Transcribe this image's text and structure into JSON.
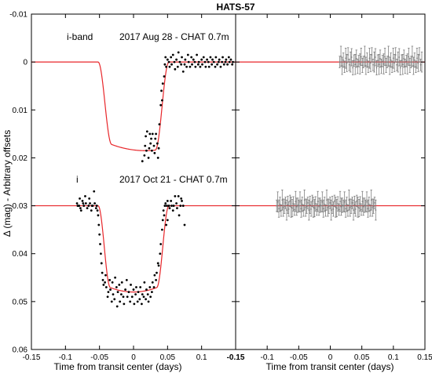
{
  "chart_data": {
    "type": "scatter",
    "title": "HATS-57",
    "ylabel": "Δ (mag) - Arbitrary offsets",
    "ylim": [
      0.06,
      -0.01
    ],
    "y_ticks": [
      "-0.01",
      "0",
      "0.01",
      "0.02",
      "0.03",
      "0.04",
      "0.05",
      "0.06"
    ],
    "y_tick_values": [
      -0.01,
      0,
      0.01,
      0.02,
      0.03,
      0.04,
      0.05,
      0.06
    ],
    "colors": {
      "model": "#e8262a",
      "points": "#000000",
      "residuals": "#7f7f7f"
    },
    "panels": [
      {
        "id": "light-curves",
        "xlabel": "Time from transit center (days)",
        "xlim": [
          -0.15,
          0.15
        ],
        "x_ticks": [
          "-0.15",
          "-0.1",
          "-0.05",
          "0",
          "0.05",
          "0.1"
        ],
        "x_tick_values": [
          -0.15,
          -0.1,
          -0.05,
          0,
          0.05,
          0.1
        ]
      },
      {
        "id": "residuals",
        "xlabel": "Time from transit center (days)",
        "xlim": [
          -0.15,
          0.15
        ],
        "x_ticks": [
          "-0.15",
          "-0.1",
          "-0.05",
          "0",
          "0.05",
          "0.1",
          "0.15"
        ],
        "x_tick_values": [
          -0.15,
          -0.1,
          -0.05,
          0,
          0.05,
          0.1,
          0.15
        ]
      }
    ],
    "series": [
      {
        "name": "i-band",
        "label_date": "2017 Aug 28 - CHAT 0.7m",
        "offset": 0,
        "model": {
          "baseline": 0,
          "depth": 0.0185,
          "t_min": 0.017,
          "ingress_start": -0.052,
          "ingress_end": -0.032,
          "egress_start": 0.032,
          "egress_end": 0.052,
          "x_range": [
            -0.15,
            0.15
          ]
        },
        "points": [
          [
            0.013,
            0.0207
          ],
          [
            0.016,
            0.0195
          ],
          [
            0.017,
            0.0175
          ],
          [
            0.018,
            0.0155
          ],
          [
            0.019,
            0.0185
          ],
          [
            0.02,
            0.0145
          ],
          [
            0.022,
            0.02
          ],
          [
            0.023,
            0.018
          ],
          [
            0.024,
            0.015
          ],
          [
            0.025,
            0.017
          ],
          [
            0.026,
            0.016
          ],
          [
            0.027,
            0.0185
          ],
          [
            0.028,
            0.015
          ],
          [
            0.03,
            0.0175
          ],
          [
            0.031,
            0.019
          ],
          [
            0.032,
            0.016
          ],
          [
            0.033,
            0.015
          ],
          [
            0.035,
            0.017
          ],
          [
            0.036,
            0.02
          ],
          [
            0.037,
            0.018
          ],
          [
            0.038,
            0.013
          ],
          [
            0.04,
            0.009
          ],
          [
            0.041,
            0.006
          ],
          [
            0.042,
            0.008
          ],
          [
            0.043,
            0.0045
          ],
          [
            0.045,
            0.003
          ],
          [
            0.046,
            0.0005
          ],
          [
            0.047,
            -0.001
          ],
          [
            0.048,
            0.001
          ],
          [
            0.05,
            -0.0005
          ],
          [
            0.052,
            0.0
          ],
          [
            0.053,
            0.001
          ],
          [
            0.055,
            -0.001
          ],
          [
            0.056,
            0.0005
          ],
          [
            0.058,
            -0.0015
          ],
          [
            0.06,
            0.0
          ],
          [
            0.061,
            0.0015
          ],
          [
            0.063,
            -0.0005
          ],
          [
            0.065,
            0.001
          ],
          [
            0.066,
            -0.002
          ],
          [
            0.068,
            0.0
          ],
          [
            0.07,
            0.0005
          ],
          [
            0.071,
            -0.001
          ],
          [
            0.073,
            0.002
          ],
          [
            0.075,
            0.0005
          ],
          [
            0.076,
            -0.0005
          ],
          [
            0.078,
            0.001
          ],
          [
            0.08,
            -0.0015
          ],
          [
            0.081,
            0.0
          ],
          [
            0.083,
            0.001
          ],
          [
            0.085,
            -0.001
          ],
          [
            0.086,
            0.0005
          ],
          [
            0.088,
            -0.0005
          ],
          [
            0.09,
            0.0
          ],
          [
            0.091,
            0.001
          ],
          [
            0.093,
            -0.0015
          ],
          [
            0.095,
            0.0005
          ],
          [
            0.096,
            0.0
          ],
          [
            0.098,
            0.001
          ],
          [
            0.1,
            -0.0005
          ],
          [
            0.101,
            0.0005
          ],
          [
            0.103,
            -0.001
          ],
          [
            0.105,
            0.0
          ],
          [
            0.106,
            0.001
          ],
          [
            0.108,
            -0.0005
          ],
          [
            0.11,
            0.0
          ],
          [
            0.111,
            0.001
          ],
          [
            0.113,
            -0.001
          ],
          [
            0.115,
            0.0005
          ],
          [
            0.116,
            -0.0005
          ],
          [
            0.118,
            0.0
          ],
          [
            0.12,
            0.001
          ],
          [
            0.121,
            -0.001
          ],
          [
            0.123,
            0.0005
          ],
          [
            0.125,
            0.0
          ],
          [
            0.126,
            -0.0005
          ],
          [
            0.128,
            0.001
          ],
          [
            0.13,
            0.0
          ],
          [
            0.131,
            -0.001
          ],
          [
            0.133,
            0.0005
          ],
          [
            0.135,
            0.0
          ],
          [
            0.136,
            -0.0005
          ],
          [
            0.138,
            0.0005
          ],
          [
            0.14,
            -0.001
          ],
          [
            0.141,
            0.0
          ],
          [
            0.143,
            -0.0005
          ],
          [
            0.145,
            0.0005
          ],
          [
            0.146,
            0.0
          ]
        ],
        "residuals": {
          "x_start": 0.015,
          "x_end": 0.145,
          "count": 70,
          "values": [
            0.0,
            -0.0012,
            0.0008,
            -0.0004,
            0.001,
            -0.0008,
            0.0002,
            -0.0015,
            0.0006,
            0.0,
            -0.001,
            0.0012,
            -0.0003,
            0.0005,
            -0.0007,
            0.0009,
            -0.0002,
            0.0004,
            -0.0011,
            0.0007
          ]
        }
      },
      {
        "name": "i",
        "label_date": "2017 Oct 21 - CHAT 0.7m",
        "offset": 0.03,
        "model": {
          "baseline": 0.03,
          "depth": 0.018,
          "t_min": 0.0,
          "ingress_start": -0.052,
          "ingress_end": -0.034,
          "egress_start": 0.034,
          "egress_end": 0.052,
          "x_range": [
            -0.15,
            0.15
          ]
        },
        "points": [
          [
            -0.083,
            0.0295
          ],
          [
            -0.082,
            0.03
          ],
          [
            -0.08,
            0.03
          ],
          [
            -0.079,
            0.0285
          ],
          [
            -0.078,
            0.0305
          ],
          [
            -0.077,
            0.031
          ],
          [
            -0.075,
            0.029
          ],
          [
            -0.074,
            0.0295
          ],
          [
            -0.073,
            0.03
          ],
          [
            -0.071,
            0.028
          ],
          [
            -0.07,
            0.0295
          ],
          [
            -0.068,
            0.0305
          ],
          [
            -0.066,
            0.03
          ],
          [
            -0.065,
            0.0285
          ],
          [
            -0.064,
            0.0295
          ],
          [
            -0.062,
            0.031
          ],
          [
            -0.061,
            0.03
          ],
          [
            -0.06,
            0.03
          ],
          [
            -0.058,
            0.027
          ],
          [
            -0.057,
            0.0295
          ],
          [
            -0.055,
            0.0305
          ],
          [
            -0.054,
            0.03
          ],
          [
            -0.053,
            0.031
          ],
          [
            -0.052,
            0.032
          ],
          [
            -0.051,
            0.034
          ],
          [
            -0.05,
            0.036
          ],
          [
            -0.049,
            0.038
          ],
          [
            -0.048,
            0.04
          ],
          [
            -0.047,
            0.042
          ],
          [
            -0.046,
            0.044
          ],
          [
            -0.045,
            0.0455
          ],
          [
            -0.044,
            0.0465
          ],
          [
            -0.042,
            0.046
          ],
          [
            -0.041,
            0.0445
          ],
          [
            -0.04,
            0.047
          ],
          [
            -0.038,
            0.049
          ],
          [
            -0.037,
            0.048
          ],
          [
            -0.035,
            0.0455
          ],
          [
            -0.034,
            0.0475
          ],
          [
            -0.032,
            0.05
          ],
          [
            -0.031,
            0.046
          ],
          [
            -0.03,
            0.0485
          ],
          [
            -0.028,
            0.0495
          ],
          [
            -0.027,
            0.045
          ],
          [
            -0.025,
            0.047
          ],
          [
            -0.024,
            0.051
          ],
          [
            -0.023,
            0.048
          ],
          [
            -0.021,
            0.0465
          ],
          [
            -0.02,
            0.05
          ],
          [
            -0.018,
            0.0485
          ],
          [
            -0.017,
            0.046
          ],
          [
            -0.015,
            0.049
          ],
          [
            -0.014,
            0.0505
          ],
          [
            -0.012,
            0.0475
          ],
          [
            -0.01,
            0.0455
          ],
          [
            -0.009,
            0.049
          ],
          [
            -0.007,
            0.048
          ],
          [
            -0.005,
            0.05
          ],
          [
            -0.004,
            0.0465
          ],
          [
            -0.002,
            0.049
          ],
          [
            0.0,
            0.0475
          ],
          [
            0.001,
            0.0505
          ],
          [
            0.003,
            0.0485
          ],
          [
            0.004,
            0.047
          ],
          [
            0.006,
            0.05
          ],
          [
            0.007,
            0.048
          ],
          [
            0.009,
            0.0495
          ],
          [
            0.01,
            0.047
          ],
          [
            0.012,
            0.0505
          ],
          [
            0.013,
            0.0485
          ],
          [
            0.015,
            0.049
          ],
          [
            0.016,
            0.046
          ],
          [
            0.018,
            0.0495
          ],
          [
            0.019,
            0.0475
          ],
          [
            0.021,
            0.0485
          ],
          [
            0.022,
            0.05
          ],
          [
            0.024,
            0.047
          ],
          [
            0.025,
            0.049
          ],
          [
            0.027,
            0.048
          ],
          [
            0.028,
            0.046
          ],
          [
            0.03,
            0.047
          ],
          [
            0.031,
            0.0445
          ],
          [
            0.033,
            0.0455
          ],
          [
            0.034,
            0.044
          ],
          [
            0.036,
            0.042
          ],
          [
            0.037,
            0.0425
          ],
          [
            0.039,
            0.04
          ],
          [
            0.04,
            0.038
          ],
          [
            0.042,
            0.035
          ],
          [
            0.043,
            0.033
          ],
          [
            0.044,
            0.031
          ],
          [
            0.046,
            0.03
          ],
          [
            0.047,
            0.0295
          ],
          [
            0.049,
            0.03
          ],
          [
            0.05,
            0.029
          ],
          [
            0.052,
            0.03
          ],
          [
            0.053,
            0.0305
          ],
          [
            0.055,
            0.029
          ],
          [
            0.056,
            0.03
          ],
          [
            0.058,
            0.031
          ],
          [
            0.059,
            0.03
          ],
          [
            0.061,
            0.028
          ],
          [
            0.063,
            0.0295
          ],
          [
            0.064,
            0.0305
          ],
          [
            0.066,
            0.028
          ],
          [
            0.067,
            0.032
          ],
          [
            0.069,
            0.03
          ],
          [
            0.07,
            0.0285
          ],
          [
            0.071,
            0.029
          ],
          [
            0.073,
            0.03
          ],
          [
            0.075,
            0.034
          ],
          [
            0.05,
            0.033
          ],
          [
            0.045,
            0.032
          ],
          [
            0.048,
            0.034
          ]
        ],
        "residuals": {
          "x_start": -0.085,
          "x_end": 0.072,
          "count": 90,
          "values": [
            0.0,
            -0.0008,
            0.0006,
            -0.0003,
            0.001,
            -0.0012,
            0.0004,
            0.0001,
            -0.0006,
            0.0009,
            -0.0002,
            0.0007,
            -0.001,
            0.0003,
            0.0005,
            -0.0004,
            0.0008,
            -0.0009,
            0.0002,
            -0.0001
          ]
        }
      }
    ]
  }
}
